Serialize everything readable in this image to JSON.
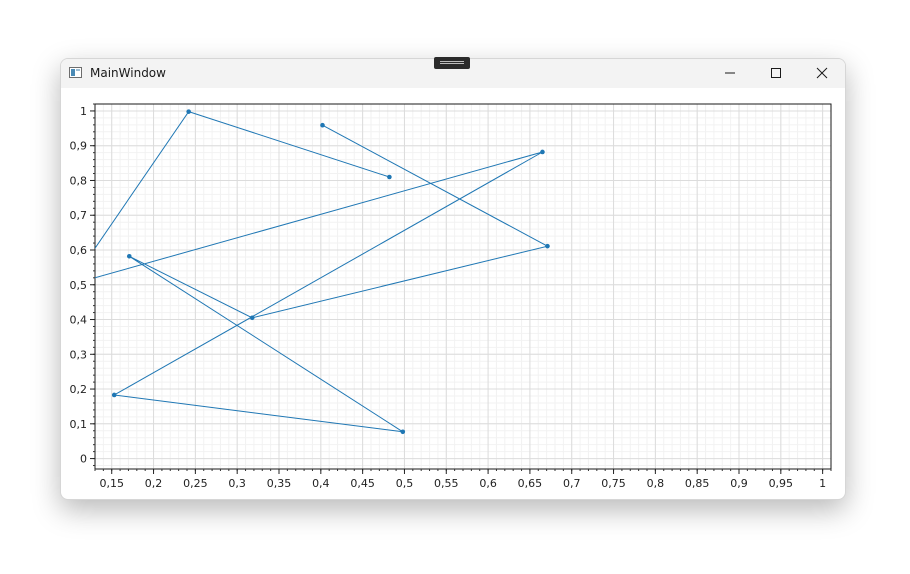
{
  "window": {
    "title": "MainWindow",
    "icons": {
      "app": "window-app-icon",
      "minimize": "minimize-icon",
      "maximize": "maximize-icon",
      "close": "close-icon",
      "handle": "drag-handle-icon"
    }
  },
  "chart_data": {
    "type": "line",
    "title": "",
    "xlabel": "",
    "ylabel": "",
    "xlim": [
      0.13,
      1.01
    ],
    "ylim": [
      -0.03,
      1.02
    ],
    "x_ticks": [
      "0,15",
      "0,2",
      "0,25",
      "0,3",
      "0,35",
      "0,4",
      "0,45",
      "0,5",
      "0,55",
      "0,6",
      "0,65",
      "0,7",
      "0,75",
      "0,8",
      "0,85",
      "0,9",
      "0,95",
      "1"
    ],
    "y_ticks": [
      "0",
      "0,1",
      "0,2",
      "0,3",
      "0,4",
      "0,5",
      "0,6",
      "0,7",
      "0,8",
      "0,9",
      "1"
    ],
    "grid": true,
    "series_color": "#1f77b4",
    "series": [
      {
        "points": [
          {
            "x": 0.482,
            "y": 0.81
          },
          {
            "x": 0.242,
            "y": 0.998
          },
          {
            "x": 0.1,
            "y": 0.5
          },
          {
            "x": 0.665,
            "y": 0.882
          },
          {
            "x": 0.153,
            "y": 0.183
          },
          {
            "x": 0.498,
            "y": 0.077
          },
          {
            "x": 0.171,
            "y": 0.582
          },
          {
            "x": 0.318,
            "y": 0.405
          },
          {
            "x": 0.671,
            "y": 0.611
          },
          {
            "x": 0.402,
            "y": 0.959
          }
        ]
      }
    ]
  }
}
